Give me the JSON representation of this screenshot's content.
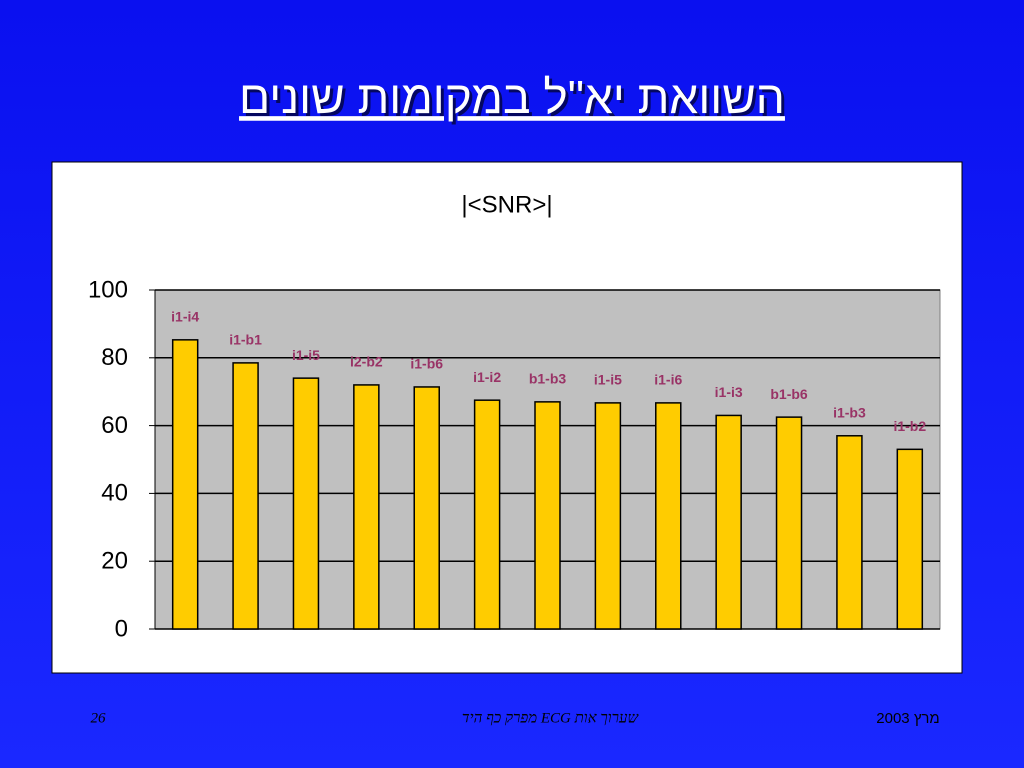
{
  "slide": {
    "title": "השוואת יא\"ל במקומות שונים",
    "page_number": "26",
    "footer_center": "שערוך אות ECG מפרק כף היד",
    "footer_right": "מרץ 2003"
  },
  "chart_data": {
    "type": "bar",
    "title": "|<SNR>|",
    "categories": [
      "i1-i4",
      "i1-b1",
      "i1-i5",
      "i2-b2",
      "i1-b6",
      "i1-i2",
      "b1-b3",
      "i1-i5",
      "i1-i6",
      "i1-i3",
      "b1-b6",
      "i1-b3",
      "i1-b2"
    ],
    "values": [
      85.3,
      78.5,
      74,
      72,
      71.4,
      67.5,
      67,
      66.7,
      66.7,
      63,
      62.5,
      57,
      53
    ],
    "color": "#ffcc00",
    "label_color": "#993366",
    "ylim": [
      0,
      100
    ],
    "yticks": [
      0,
      20,
      40,
      60,
      80,
      100
    ],
    "grid": true
  }
}
